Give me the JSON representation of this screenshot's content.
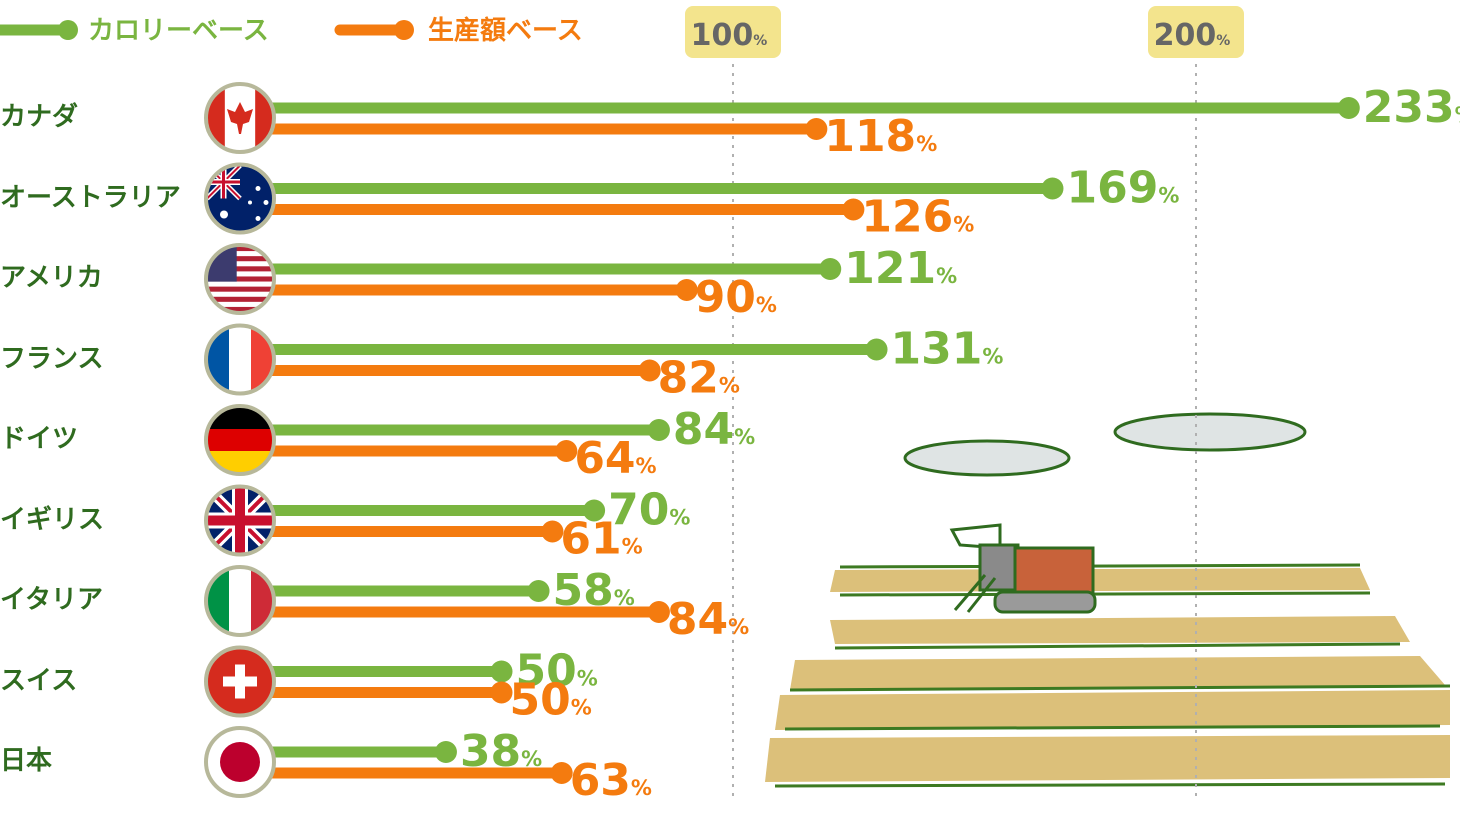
{
  "chart_data": {
    "type": "bar",
    "xlim": [
      0,
      250
    ],
    "legend": {
      "position": "top-left"
    },
    "reference_ticks": [
      {
        "value": 100,
        "label": "100",
        "unit": "%"
      },
      {
        "value": 200,
        "label": "200",
        "unit": "%"
      }
    ],
    "categories": [
      "カナダ",
      "オーストラリア",
      "アメリカ",
      "フランス",
      "ドイツ",
      "イギリス",
      "イタリア",
      "スイス",
      "日本"
    ],
    "series": [
      {
        "name": "カロリーベース",
        "color": "#7ab540",
        "values": [
          233,
          169,
          121,
          131,
          84,
          70,
          58,
          50,
          38
        ]
      },
      {
        "name": "生産額ベース",
        "color": "#f47b0f",
        "values": [
          118,
          126,
          90,
          82,
          64,
          61,
          84,
          50,
          63
        ]
      }
    ],
    "unit": "%",
    "flags": [
      "canada-flag-icon",
      "australia-flag-icon",
      "usa-flag-icon",
      "france-flag-icon",
      "germany-flag-icon",
      "uk-flag-icon",
      "italy-flag-icon",
      "switzerland-flag-icon",
      "japan-flag-icon"
    ]
  },
  "colors": {
    "green": "#7ab540",
    "orange": "#f47b0f",
    "label": "#2f6b1f",
    "tick_bg": "#f3e48d",
    "tick_text": "#666666"
  },
  "illustration": "combine-harvester-field-icon"
}
